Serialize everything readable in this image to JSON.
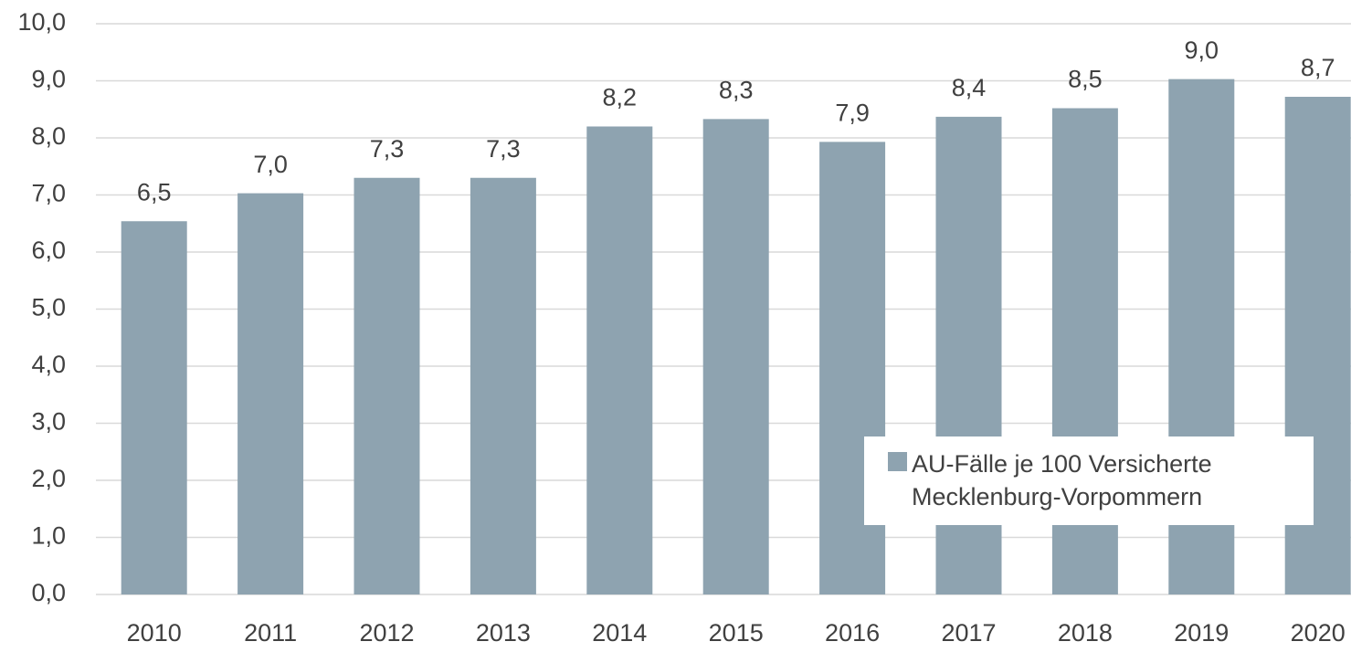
{
  "chart_data": {
    "type": "bar",
    "categories": [
      "2010",
      "2011",
      "2012",
      "2013",
      "2014",
      "2015",
      "2016",
      "2017",
      "2018",
      "2019",
      "2020"
    ],
    "series": [
      {
        "name": "AU-Fälle je 100 Versicherte Mecklenburg-Vorpommern",
        "color": "#8ea3b0",
        "values": [
          6.54,
          7.03,
          7.3,
          7.3,
          8.2,
          8.33,
          7.93,
          8.37,
          8.52,
          9.03,
          8.72
        ],
        "value_labels": [
          "6,5",
          "7,0",
          "7,3",
          "7,3",
          "8,2",
          "8,3",
          "7,9",
          "8,4",
          "8,5",
          "9,0",
          "8,7"
        ]
      }
    ],
    "ylim": [
      0,
      10
    ],
    "yticks": [
      {
        "value": 0,
        "label": "0,0"
      },
      {
        "value": 1,
        "label": "1,0"
      },
      {
        "value": 2,
        "label": "2,0"
      },
      {
        "value": 3,
        "label": "3,0"
      },
      {
        "value": 4,
        "label": "4,0"
      },
      {
        "value": 5,
        "label": "5,0"
      },
      {
        "value": 6,
        "label": "6,0"
      },
      {
        "value": 7,
        "label": "7,0"
      },
      {
        "value": 8,
        "label": "8,0"
      },
      {
        "value": 9,
        "label": "9,0"
      },
      {
        "value": 10,
        "label": "10,0"
      }
    ],
    "grid": true,
    "legend": "lower-right"
  }
}
